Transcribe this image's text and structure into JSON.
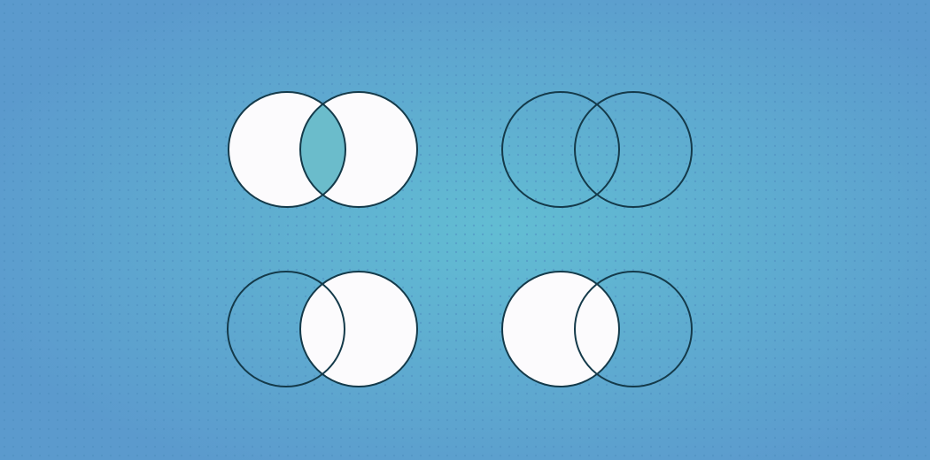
{
  "colors": {
    "background_edge": "#5b9acd",
    "background_center": "#62bdd3",
    "pattern_dot": "#4f8fc0",
    "circle_fill": "#fcfbfd",
    "circle_stroke": "#143a4a",
    "intersection_fill": "#6bbccb"
  },
  "diagrams": [
    {
      "name": "intersection",
      "left_filled": true,
      "right_filled": true,
      "overlap_mode": "highlight"
    },
    {
      "name": "empty",
      "left_filled": false,
      "right_filled": false,
      "overlap_mode": "none"
    },
    {
      "name": "right-set",
      "left_filled": false,
      "right_filled": true,
      "overlap_mode": "right"
    },
    {
      "name": "left-set",
      "left_filled": true,
      "right_filled": false,
      "overlap_mode": "left"
    }
  ]
}
